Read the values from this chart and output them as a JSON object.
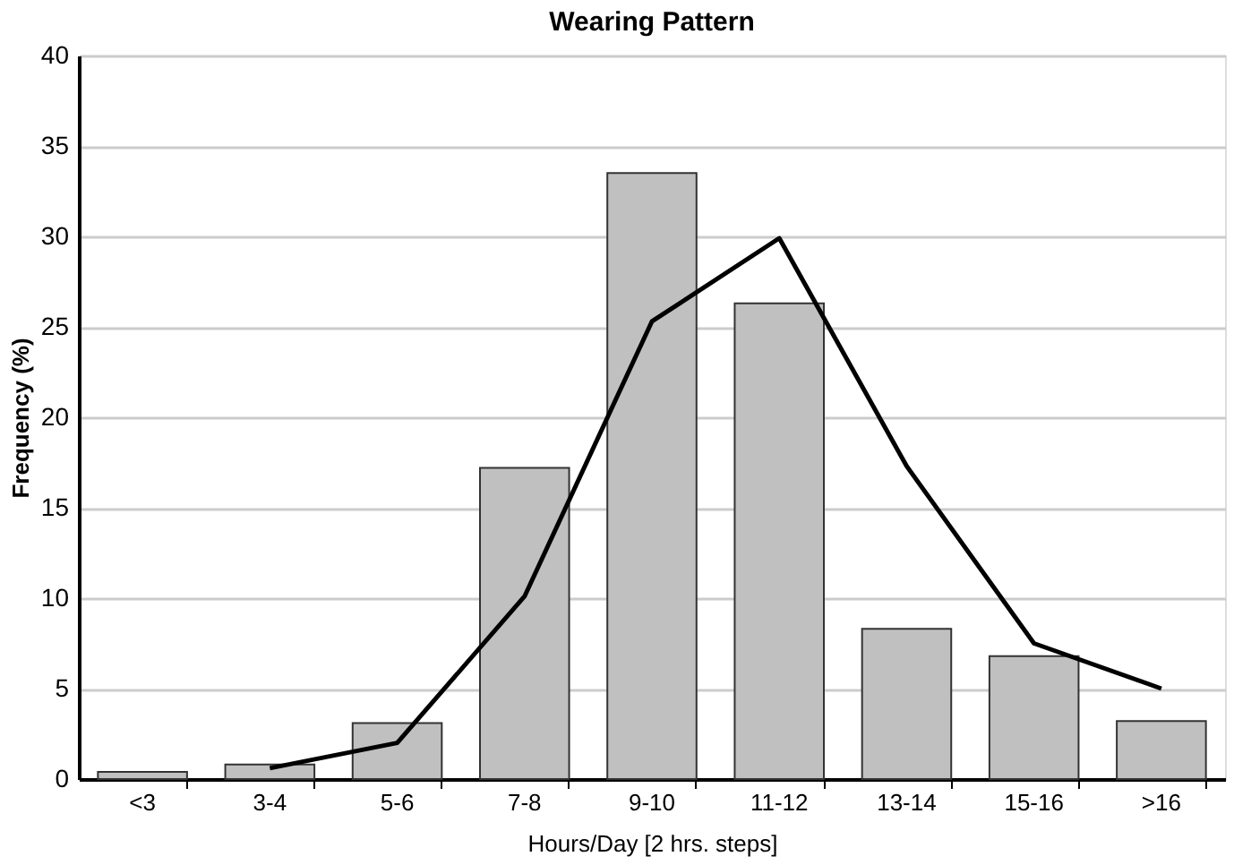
{
  "chart_data": {
    "type": "bar",
    "title": "Wearing Pattern",
    "xlabel": "Hours/Day [2 hrs. steps]",
    "ylabel": "Frequency (%)",
    "categories": [
      "<3",
      "3-4",
      "5-6",
      "7-8",
      "9-10",
      "11-12",
      "13-14",
      "15-16",
      ">16"
    ],
    "series": [
      {
        "color": "#c0c0c0",
        "values": [
          0.4,
          0.8,
          3.1,
          17.2,
          33.5,
          26.3,
          8.3,
          6.8,
          3.2
        ]
      },
      {
        "type": "line",
        "color": "#000000",
        "values": [
          null,
          0.6,
          2.0,
          10.1,
          25.3,
          29.9,
          17.3,
          7.5,
          5.0
        ]
      }
    ],
    "ylim": [
      0,
      40
    ],
    "yticks": [
      0,
      5,
      10,
      15,
      20,
      25,
      30,
      35,
      40
    ],
    "grid": "y",
    "legend": false,
    "marker": "none",
    "line_style": "solid"
  }
}
